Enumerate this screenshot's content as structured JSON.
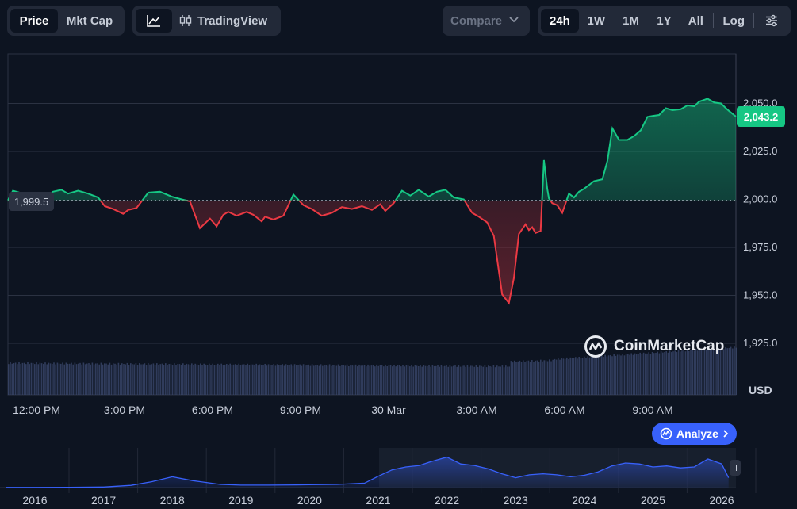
{
  "toolbar": {
    "metric_tabs": [
      {
        "label": "Price",
        "active": true
      },
      {
        "label": "Mkt Cap",
        "active": false
      }
    ],
    "tradingview_label": "TradingView",
    "compare_label": "Compare",
    "ranges": [
      {
        "label": "24h",
        "active": true
      },
      {
        "label": "1W",
        "active": false
      },
      {
        "label": "1M",
        "active": false
      },
      {
        "label": "1Y",
        "active": false
      },
      {
        "label": "All",
        "active": false
      }
    ],
    "log_label": "Log"
  },
  "icons": {
    "line_chart": "line-chart-icon",
    "candles": "candlestick-icon",
    "chevron": "chevron-down-icon",
    "settings": "sliders-icon",
    "brand": "coinmarketcap-logo-icon",
    "analyze": "analyze-icon"
  },
  "colors": {
    "up": "#16c784",
    "down": "#ea3943",
    "accent": "#3861fb",
    "background": "#0d1421"
  },
  "chart_data": [
    {
      "type": "line",
      "title": "",
      "ylabel": "",
      "y_ticks": [
        "1,925.0",
        "1,950.0",
        "1,975.0",
        "2,000.0",
        "2,025.0",
        "2,050.0"
      ],
      "ylim": [
        1917,
        2075
      ],
      "x_ticks": [
        "12:00 PM",
        "3:00 PM",
        "6:00 PM",
        "9:00 PM",
        "30 Mar",
        "3:00 AM",
        "6:00 AM",
        "9:00 AM"
      ],
      "currency_label": "USD",
      "open_price": 1999.5,
      "open_label": "1,999.5",
      "current_price": 2043.2,
      "current_label": "2,043.2",
      "series": [
        {
          "t": [
            0,
            0.15,
            0.45,
            0.75,
            1.05,
            1.35,
            1.6,
            1.8,
            2.1,
            2.4,
            2.7,
            2.9,
            3.15,
            3.45,
            3.6,
            3.85,
            4.2,
            4.55,
            4.9,
            5.2,
            5.45,
            5.75,
            6.05,
            6.25,
            6.45,
            6.6,
            6.85,
            7.15,
            7.35,
            7.6,
            7.7,
            7.95,
            8.25,
            8.55,
            8.85,
            9.1,
            9.4,
            9.7,
            10.0,
            10.3,
            10.6,
            10.9,
            11.15,
            11.3,
            11.55,
            11.8,
            12.05,
            12.3,
            12.6,
            12.85,
            13.1,
            13.35,
            13.65,
            13.9,
            14.1,
            14.35,
            14.55,
            14.8,
            15.0,
            15.15,
            15.3,
            15.5,
            15.6,
            15.7,
            15.8,
            15.95,
            16.05,
            16.15,
            16.2,
            16.3,
            16.45,
            16.6,
            16.8,
            16.95,
            17.1,
            17.25,
            17.55,
            17.8,
            17.95,
            18.1,
            18.3,
            18.55,
            18.75,
            18.95,
            19.15,
            19.3,
            19.5,
            19.7,
            19.9,
            20.15,
            20.35,
            20.55,
            20.7,
            20.95,
            21.15,
            21.35,
            21.5,
            21.6,
            21.8
          ],
          "values": [
            1999.5,
            2004.5,
            2003,
            2003.5,
            2000.5,
            2004,
            2005,
            2003,
            2004.5,
            2003,
            2001,
            1996.5,
            1995,
            1992.5,
            1994.5,
            1995.5,
            2003.5,
            2004,
            2001.5,
            2000,
            1999,
            1985,
            1990,
            1986,
            1992,
            1993.5,
            1991.5,
            1993.5,
            1992,
            1988.5,
            1991,
            1989.5,
            1991.5,
            2002.5,
            1997,
            1995,
            1991.5,
            1993,
            1996,
            1995,
            1996.5,
            1994.5,
            1997.5,
            1994,
            1998,
            2004.5,
            2002,
            2005,
            2001.5,
            2004,
            2005,
            2001,
            2000,
            1993,
            1991,
            1988,
            1981,
            1950.5,
            1946,
            1959,
            1982,
            1987,
            1984,
            1985.5,
            1982.5,
            1983.5,
            2020.5,
            2005.5,
            2000.5,
            1998,
            1997,
            1993,
            2003,
            2001,
            2004,
            2005.5,
            2009.5,
            2010.5,
            2020,
            2037,
            2031,
            2031,
            2033,
            2036,
            2043,
            2043.5,
            2044,
            2047.5,
            2046.5,
            2047,
            2049,
            2048.5,
            2051,
            2052.5,
            2050.5,
            2050,
            2047.5,
            2046,
            2043.2
          ]
        }
      ]
    },
    {
      "type": "area",
      "title": "",
      "x_ticks": [
        "2016",
        "2017",
        "2018",
        "2019",
        "2020",
        "2021",
        "2022",
        "2023",
        "2024",
        "2025",
        "2026"
      ],
      "series": [
        {
          "x": [
            2015.4,
            2016.0,
            2016.5,
            2017.0,
            2017.4,
            2017.7,
            2018.0,
            2018.3,
            2018.7,
            2019.0,
            2019.4,
            2019.8,
            2020.0,
            2020.4,
            2020.8,
            2021.0,
            2021.2,
            2021.4,
            2021.6,
            2021.75,
            2021.9,
            2022.0,
            2022.2,
            2022.4,
            2022.6,
            2022.8,
            2023.0,
            2023.2,
            2023.4,
            2023.6,
            2023.8,
            2024.0,
            2024.2,
            2024.4,
            2024.6,
            2024.8,
            2025.0,
            2025.2,
            2025.4,
            2025.6,
            2025.8,
            2026.0,
            2026.1
          ],
          "values": [
            0.3,
            0.4,
            0.6,
            1.2,
            4.5,
            12,
            22,
            14,
            6.5,
            5,
            5,
            5.5,
            6,
            6.5,
            9,
            23,
            36,
            42,
            45,
            52,
            58,
            62,
            48,
            45,
            38,
            28,
            20,
            26,
            28,
            26,
            22,
            25,
            32,
            44,
            50,
            48,
            42,
            44,
            40,
            42,
            58,
            48,
            20
          ]
        }
      ]
    }
  ]
}
